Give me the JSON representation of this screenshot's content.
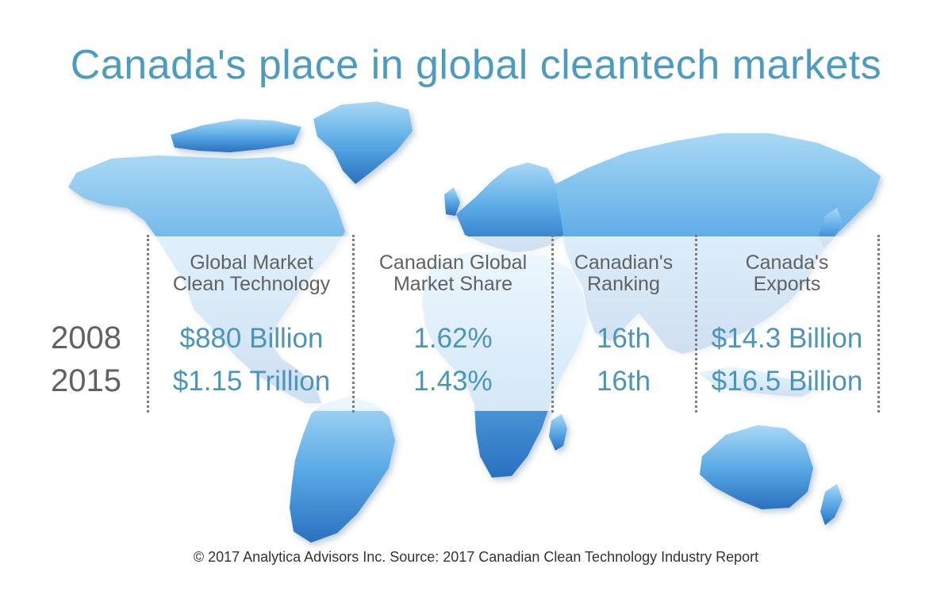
{
  "title": "Canada's place in global cleantech markets",
  "columns": [
    {
      "header_line1": "Global Market",
      "header_line2": "Clean Technology",
      "v2008": "$880 Billion",
      "v2015": "$1.15 Trillion"
    },
    {
      "header_line1": "Canadian Global",
      "header_line2": "Market Share",
      "v2008": "1.62%",
      "v2015": "1.43%"
    },
    {
      "header_line1": "Canadian's",
      "header_line2": "Ranking",
      "v2008": "16th",
      "v2015": "16th"
    },
    {
      "header_line1": "Canada's",
      "header_line2": "Exports",
      "v2008": "$14.3 Billion",
      "v2015": "$16.5 Billion"
    }
  ],
  "years": [
    "2008",
    "2015"
  ],
  "footer": "© 2017 Analytica Advisors Inc.  Source: 2017 Canadian Clean Technology Industry Report",
  "colors": {
    "title": "#4c9cc2",
    "map_light": "#9cd0f0",
    "map_dark": "#2d78c4",
    "values": "#4b94bb",
    "labels": "#616161"
  }
}
